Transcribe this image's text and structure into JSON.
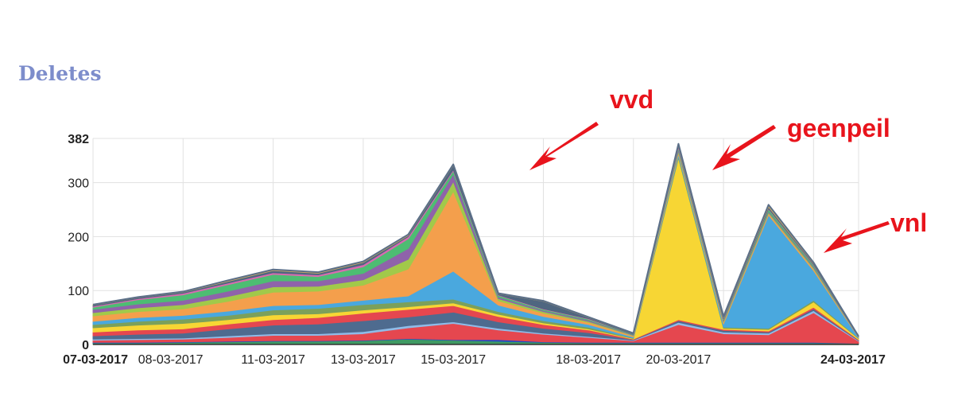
{
  "page": {
    "title": "Deletes"
  },
  "chart_data": {
    "type": "area",
    "stacked": true,
    "title": "Deletes",
    "xlabel": "",
    "ylabel": "",
    "ylim": [
      0,
      382
    ],
    "y_ticks": [
      "382",
      "300",
      "200",
      "100",
      "0"
    ],
    "grid": true,
    "x": [
      "07-03-2017",
      "08-03-2017",
      "09-03-2017",
      "10-03-2017",
      "11-03-2017",
      "12-03-2017",
      "13-03-2017",
      "14-03-2017",
      "15-03-2017",
      "16-03-2017",
      "17-03-2017",
      "18-03-2017",
      "19-03-2017",
      "20-03-2017",
      "21-03-2017",
      "22-03-2017",
      "23-03-2017",
      "24-03-2017"
    ],
    "x_tick_labels": [
      {
        "label": "07-03-2017",
        "bold": true
      },
      {
        "label": "08-03-2017",
        "bold": false
      },
      {
        "label": "11-03-2017",
        "bold": false
      },
      {
        "label": "13-03-2017",
        "bold": false
      },
      {
        "label": "15-03-2017",
        "bold": false
      },
      {
        "label": "18-03-2017",
        "bold": false
      },
      {
        "label": "20-03-2017",
        "bold": false
      },
      {
        "label": "24-03-2017",
        "bold": true
      }
    ],
    "series": [
      {
        "color": "#3f9a63",
        "values": [
          3,
          3,
          4,
          5,
          6,
          6,
          7,
          10,
          8,
          6,
          4,
          3,
          3,
          3,
          3,
          3,
          3,
          2
        ]
      },
      {
        "color": "#1f49c9",
        "values": [
          1,
          1,
          1,
          1,
          1,
          1,
          1,
          1,
          1,
          3,
          1,
          1,
          1,
          1,
          1,
          1,
          1,
          0
        ]
      },
      {
        "color": "#e5474f",
        "values": [
          4,
          5,
          5,
          7,
          10,
          10,
          12,
          20,
          30,
          18,
          14,
          9,
          3,
          33,
          16,
          14,
          55,
          4
        ]
      },
      {
        "color": "#8fbce8",
        "values": [
          2,
          2,
          2,
          3,
          3,
          3,
          4,
          4,
          3,
          3,
          2,
          2,
          1,
          4,
          3,
          3,
          4,
          1
        ]
      },
      {
        "color": "#4e6b8f",
        "values": [
          6,
          8,
          9,
          13,
          16,
          18,
          20,
          16,
          18,
          12,
          9,
          7,
          1,
          3,
          3,
          2,
          3,
          1
        ]
      },
      {
        "color": "#e5474f",
        "values": [
          7,
          8,
          8,
          9,
          10,
          12,
          14,
          14,
          12,
          10,
          7,
          5,
          1,
          2,
          2,
          2,
          3,
          1
        ]
      },
      {
        "color": "#f7d634",
        "values": [
          8,
          9,
          10,
          8,
          9,
          7,
          6,
          5,
          5,
          4,
          3,
          2,
          1,
          300,
          2,
          3,
          10,
          2
        ]
      },
      {
        "color": "#7ba05b",
        "values": [
          6,
          7,
          8,
          8,
          9,
          10,
          10,
          9,
          7,
          5,
          4,
          3,
          1,
          3,
          2,
          2,
          3,
          1
        ]
      },
      {
        "color": "#4aa8de",
        "values": [
          6,
          7,
          7,
          8,
          8,
          7,
          8,
          11,
          52,
          12,
          8,
          5,
          2,
          4,
          6,
          210,
          55,
          1
        ]
      },
      {
        "color": "#f49f4c",
        "values": [
          10,
          11,
          12,
          18,
          25,
          25,
          28,
          50,
          148,
          8,
          6,
          4,
          2,
          3,
          3,
          3,
          3,
          1
        ]
      },
      {
        "color": "#a1c94a",
        "values": [
          6,
          7,
          8,
          9,
          10,
          9,
          10,
          18,
          18,
          4,
          3,
          2,
          1,
          3,
          2,
          2,
          2,
          0
        ]
      },
      {
        "color": "#8f63aa",
        "values": [
          6,
          7,
          8,
          10,
          11,
          10,
          12,
          20,
          14,
          3,
          2,
          2,
          1,
          3,
          2,
          2,
          2,
          0
        ]
      },
      {
        "color": "#4dbd72",
        "values": [
          4,
          8,
          10,
          12,
          12,
          8,
          12,
          18,
          6,
          3,
          2,
          2,
          1,
          3,
          2,
          4,
          3,
          0
        ]
      },
      {
        "color": "#d86ab0",
        "values": [
          2,
          2,
          3,
          3,
          3,
          3,
          4,
          4,
          2,
          1,
          1,
          1,
          0,
          2,
          1,
          1,
          1,
          0
        ]
      },
      {
        "color": "#4f6680",
        "values": [
          2,
          2,
          2,
          3,
          4,
          3,
          4,
          2,
          8,
          2,
          14,
          2,
          1,
          2,
          2,
          3,
          2,
          1
        ]
      },
      {
        "color": "#c7a866",
        "values": [
          1,
          1,
          1,
          2,
          2,
          2,
          2,
          2,
          2,
          1,
          1,
          1,
          1,
          3,
          2,
          4,
          2,
          0
        ]
      }
    ],
    "annotations": [
      "vvd",
      "geenpeil",
      "vnl"
    ]
  },
  "colors": {
    "annotation": "#e8141c",
    "title": "#7d8dcb",
    "grid": "#e1e1e1"
  }
}
